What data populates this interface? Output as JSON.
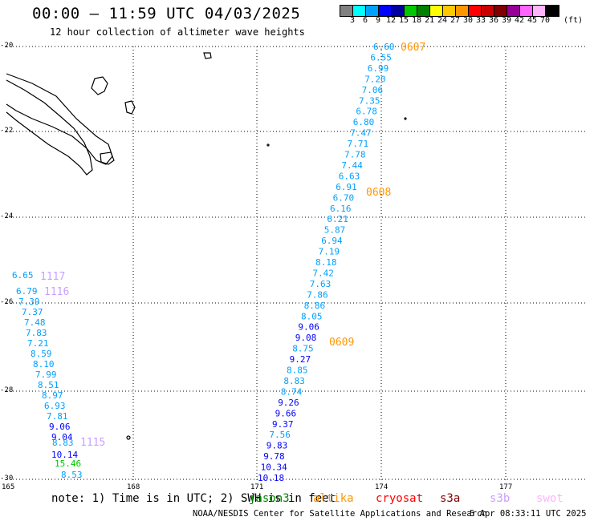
{
  "header": {
    "title": "00:00 – 11:59 UTC 04/03/2025",
    "subtitle": "12 hour collection of altimeter wave heights"
  },
  "legend": {
    "colors": [
      "#808080",
      "#00ffff",
      "#00a0ff",
      "#0000ff",
      "#0000a0",
      "#00c800",
      "#008000",
      "#ffff00",
      "#ffc800",
      "#ff9600",
      "#ff0000",
      "#c80000",
      "#800000",
      "#960096",
      "#ff64ff",
      "#ffb4ff",
      "#000000"
    ],
    "labels": [
      "3",
      "6",
      "9",
      "12",
      "15",
      "18",
      "21",
      "24",
      "27",
      "30",
      "33",
      "36",
      "39",
      "42",
      "45",
      "70",
      "(ft)"
    ]
  },
  "axes": {
    "lat_labels": [
      "-20",
      "-22",
      "-24",
      "-26",
      "-28",
      "-30"
    ],
    "lon_labels": [
      "165",
      "168",
      "171",
      "174",
      "177"
    ]
  },
  "chart_data": {
    "type": "scatter",
    "title": "00:00 – 11:59 UTC 04/03/2025",
    "subtitle": "12 hour collection of altimeter wave heights",
    "xlim": [
      165,
      179
    ],
    "ylim": [
      -30,
      -20
    ],
    "tracks": [
      {
        "label": "0607 / 0608 / 0609",
        "values": [
          "6.60",
          "6.55",
          "6.99",
          "7.20",
          "7.06",
          "7.35",
          "6.78",
          "6.80",
          "7.47",
          "7.71",
          "7.78",
          "7.44",
          "6.63",
          "6.91",
          "6.70",
          "6.16",
          "6.21",
          "5.87",
          "6.94",
          "7.19",
          "8.18",
          "7.42",
          "7.63",
          "7.86",
          "8.86",
          "8.05",
          "9.06",
          "9.08",
          "8.75",
          "9.27",
          "8.85",
          "8.83",
          "8.74",
          "9.26",
          "9.66",
          "9.37",
          "7.56",
          "9.83",
          "9.78",
          "10.34",
          "10.18"
        ],
        "time_labels": [
          "0607",
          "0608",
          "0609"
        ],
        "satellite": "altika"
      },
      {
        "label": "1115 / 1116 / 1117",
        "values": [
          "6.65",
          "6.79",
          "7.39",
          "7.37",
          "7.48",
          "7.83",
          "7.21",
          "8.59",
          "8.10",
          "7.99",
          "8.51",
          "8.97",
          "6.93",
          "7.81",
          "9.06",
          "9.04",
          "8.83",
          "10.14",
          "15.46",
          "8.53"
        ],
        "time_labels": [
          "1117",
          "1116",
          "1115"
        ],
        "satellite": "s3b"
      }
    ]
  },
  "footer": {
    "note": "note: 1) Time is in UTC; 2) SWH is in feet",
    "satellites": [
      "jason3",
      "altika",
      "cryosat",
      "s3a",
      "s3b",
      "swot"
    ],
    "satellite_colors": [
      "#008000",
      "#ff9600",
      "#ff0000",
      "#800000",
      "#c8a0ff",
      "#ffb4ff"
    ],
    "credit": "NOAA/NESDIS Center for Satellite Applications and Research",
    "timestamp": "5 Apr 08:33:11 UTC 2025"
  }
}
